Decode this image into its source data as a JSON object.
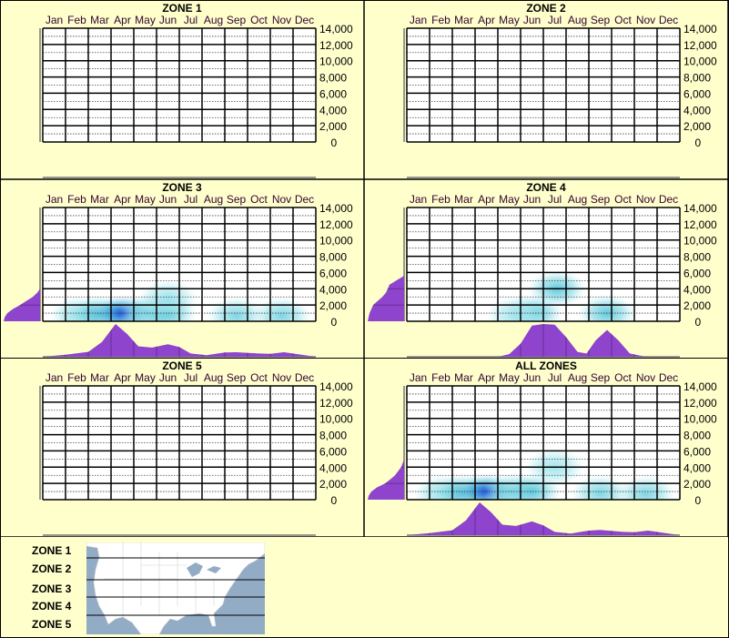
{
  "colors": {
    "background": "#ffffcc",
    "density": "#8e44cc",
    "heat_low": "#b8eef2",
    "heat_mid": "#4cc0d6",
    "heat_high": "#0038d8",
    "map_water": "#93acc6",
    "map_land": "#ffffff"
  },
  "months": [
    "Jan",
    "Feb",
    "Mar",
    "Apr",
    "May",
    "Jun",
    "Jul",
    "Aug",
    "Sep",
    "Oct",
    "Nov",
    "Dec"
  ],
  "y_ticks": [
    "0",
    "2,000",
    "4,000",
    "6,000",
    "8,000",
    "10,000",
    "12,000",
    "14,000"
  ],
  "chart_data": [
    {
      "type": "heatmap",
      "title": "ZONE 1",
      "ylim": [
        0,
        14000
      ],
      "grid": true,
      "blobs": [],
      "month_density": [],
      "y_density": []
    },
    {
      "type": "heatmap",
      "title": "ZONE 2",
      "ylim": [
        0,
        14000
      ],
      "grid": true,
      "blobs": [],
      "month_density": [],
      "y_density": []
    },
    {
      "type": "heatmap",
      "title": "ZONE 3",
      "ylim": [
        0,
        14000
      ],
      "grid": true,
      "blobs": [
        {
          "month": 1.6,
          "y": 800,
          "intensity": 0.2
        },
        {
          "month": 2.5,
          "y": 900,
          "intensity": 0.55
        },
        {
          "month": 3.5,
          "y": 1000,
          "intensity": 1.0
        },
        {
          "month": 4.6,
          "y": 1000,
          "intensity": 0.4
        },
        {
          "month": 5.5,
          "y": 1000,
          "intensity": 0.45
        },
        {
          "month": 5.5,
          "y": 2800,
          "intensity": 0.15
        },
        {
          "month": 8.5,
          "y": 700,
          "intensity": 0.3
        },
        {
          "month": 10.5,
          "y": 700,
          "intensity": 0.3
        }
      ],
      "month_density": [
        [
          0,
          0
        ],
        [
          1,
          0.06
        ],
        [
          2,
          0.15
        ],
        [
          2.6,
          0.45
        ],
        [
          3.2,
          1.0
        ],
        [
          3.7,
          0.7
        ],
        [
          4.2,
          0.32
        ],
        [
          4.8,
          0.28
        ],
        [
          5.5,
          0.38
        ],
        [
          6,
          0.3
        ],
        [
          6.5,
          0.1
        ],
        [
          7.2,
          0.05
        ],
        [
          8,
          0.13
        ],
        [
          8.5,
          0.14
        ],
        [
          9.5,
          0.1
        ],
        [
          10,
          0.09
        ],
        [
          10.6,
          0.14
        ],
        [
          11.2,
          0.08
        ],
        [
          12,
          0
        ]
      ],
      "y_density": [
        [
          0,
          1.0
        ],
        [
          500,
          0.97
        ],
        [
          1000,
          0.9
        ],
        [
          1500,
          0.75
        ],
        [
          2000,
          0.55
        ],
        [
          2500,
          0.38
        ],
        [
          3000,
          0.2
        ],
        [
          3500,
          0.08
        ],
        [
          4000,
          0
        ]
      ]
    },
    {
      "type": "heatmap",
      "title": "ZONE 4",
      "ylim": [
        0,
        14000
      ],
      "grid": true,
      "blobs": [
        {
          "month": 5.6,
          "y": 1000,
          "intensity": 0.45
        },
        {
          "month": 6.6,
          "y": 4000,
          "intensity": 0.45
        },
        {
          "month": 8.8,
          "y": 1000,
          "intensity": 0.45
        },
        {
          "month": 4.8,
          "y": 800,
          "intensity": 0.12
        }
      ],
      "month_density": [
        [
          0,
          0
        ],
        [
          4,
          0
        ],
        [
          4.5,
          0.08
        ],
        [
          5,
          0.4
        ],
        [
          5.5,
          0.95
        ],
        [
          6,
          1.0
        ],
        [
          6.5,
          0.98
        ],
        [
          7,
          0.6
        ],
        [
          7.5,
          0.15
        ],
        [
          7.9,
          0.1
        ],
        [
          8.3,
          0.5
        ],
        [
          8.8,
          0.82
        ],
        [
          9.3,
          0.5
        ],
        [
          9.8,
          0.1
        ],
        [
          10.5,
          0
        ],
        [
          12,
          0
        ]
      ],
      "y_density": [
        [
          0,
          1.0
        ],
        [
          1000,
          0.95
        ],
        [
          2000,
          0.85
        ],
        [
          3000,
          0.6
        ],
        [
          3500,
          0.5
        ],
        [
          4000,
          0.45
        ],
        [
          4500,
          0.4
        ],
        [
          5000,
          0.22
        ],
        [
          5600,
          0
        ]
      ]
    },
    {
      "type": "heatmap",
      "title": "ZONE 5",
      "ylim": [
        0,
        14000
      ],
      "grid": true,
      "blobs": [],
      "month_density": [],
      "y_density": []
    },
    {
      "type": "heatmap",
      "title": "ALL ZONES",
      "ylim": [
        0,
        14000
      ],
      "grid": true,
      "blobs": [
        {
          "month": 1.6,
          "y": 800,
          "intensity": 0.2
        },
        {
          "month": 2.5,
          "y": 900,
          "intensity": 0.55
        },
        {
          "month": 3.5,
          "y": 1000,
          "intensity": 1.0
        },
        {
          "month": 4.6,
          "y": 1000,
          "intensity": 0.4
        },
        {
          "month": 5.5,
          "y": 1000,
          "intensity": 0.45
        },
        {
          "month": 6.5,
          "y": 4000,
          "intensity": 0.12
        },
        {
          "month": 8.5,
          "y": 800,
          "intensity": 0.3
        },
        {
          "month": 10.5,
          "y": 700,
          "intensity": 0.3
        }
      ],
      "month_density": [
        [
          0,
          0
        ],
        [
          1,
          0.06
        ],
        [
          2,
          0.15
        ],
        [
          2.6,
          0.45
        ],
        [
          3.2,
          1.0
        ],
        [
          3.7,
          0.7
        ],
        [
          4.2,
          0.32
        ],
        [
          4.8,
          0.28
        ],
        [
          5.5,
          0.42
        ],
        [
          6,
          0.3
        ],
        [
          6.5,
          0.1
        ],
        [
          7.2,
          0.05
        ],
        [
          8,
          0.14
        ],
        [
          8.5,
          0.16
        ],
        [
          9.5,
          0.1
        ],
        [
          10,
          0.09
        ],
        [
          10.6,
          0.14
        ],
        [
          11.2,
          0.08
        ],
        [
          12,
          0
        ]
      ],
      "y_density": [
        [
          0,
          1.0
        ],
        [
          500,
          0.97
        ],
        [
          1000,
          0.9
        ],
        [
          1500,
          0.75
        ],
        [
          2000,
          0.52
        ],
        [
          2500,
          0.38
        ],
        [
          3000,
          0.25
        ],
        [
          4000,
          0.08
        ],
        [
          5000,
          0
        ]
      ]
    }
  ],
  "legend": {
    "zones": [
      "ZONE 1",
      "ZONE 2",
      "ZONE 3",
      "ZONE 4",
      "ZONE 5"
    ]
  }
}
